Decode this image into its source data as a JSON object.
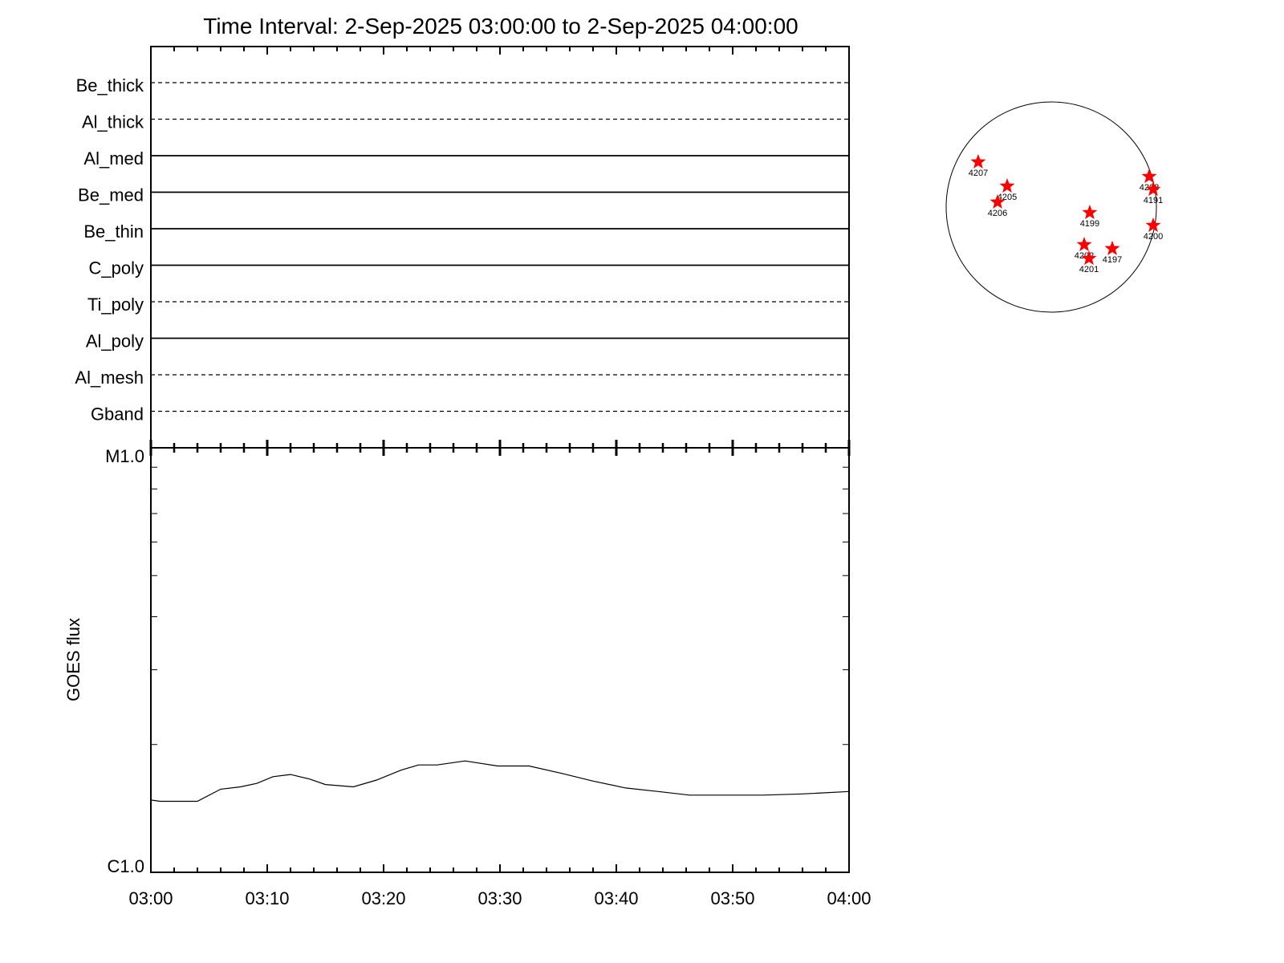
{
  "chart_data": [
    {
      "type": "table",
      "title": "Time Interval:  2-Sep-2025 03:00:00 to  2-Sep-2025 04:00:00",
      "filters": [
        {
          "name": "Be_thick",
          "style": "dashed"
        },
        {
          "name": "Al_thick",
          "style": "dashed"
        },
        {
          "name": "Al_med",
          "style": "solid"
        },
        {
          "name": "Be_med",
          "style": "solid"
        },
        {
          "name": "Be_thin",
          "style": "solid"
        },
        {
          "name": "C_poly",
          "style": "solid"
        },
        {
          "name": "Ti_poly",
          "style": "dashed"
        },
        {
          "name": "Al_poly",
          "style": "solid"
        },
        {
          "name": "Al_mesh",
          "style": "dashed"
        },
        {
          "name": "Gband",
          "style": "dashed"
        }
      ]
    },
    {
      "type": "line",
      "ylabel": "GOES flux",
      "xlabel": "",
      "yscale": "log",
      "ylim": [
        1e-06,
        1e-05
      ],
      "ytick_labels": [
        {
          "value": 1e-05,
          "label": "M1.0"
        },
        {
          "value": 1e-06,
          "label": "C1.0"
        }
      ],
      "xlim": [
        "03:00",
        "04:00"
      ],
      "xtick_labels": [
        "03:00",
        "03:10",
        "03:20",
        "03:30",
        "03:40",
        "03:50",
        "04:00"
      ],
      "grid": false,
      "series": [
        {
          "color": "#000000",
          "x": [
            0,
            0.8,
            4,
            6,
            7.7,
            9.1,
            10.5,
            12,
            13.6,
            15,
            17.4,
            19.4,
            21.5,
            23,
            24.6,
            27,
            29.8,
            32.5,
            35.3,
            38,
            40.8,
            43.6,
            46.3,
            49.1,
            52.6,
            56,
            60
          ],
          "x_unit": "minutes after 03:00",
          "values": [
            1.48e-06,
            1.47e-06,
            1.47e-06,
            1.57e-06,
            1.59e-06,
            1.62e-06,
            1.68e-06,
            1.7e-06,
            1.66e-06,
            1.61e-06,
            1.59e-06,
            1.65e-06,
            1.74e-06,
            1.79e-06,
            1.79e-06,
            1.83e-06,
            1.78e-06,
            1.78e-06,
            1.71e-06,
            1.64e-06,
            1.58e-06,
            1.55e-06,
            1.52e-06,
            1.52e-06,
            1.52e-06,
            1.53e-06,
            1.55e-06
          ]
        }
      ]
    },
    {
      "type": "scatter",
      "marker": "star",
      "marker_color": "#ff0000",
      "disk_radius_arcsec": 951,
      "regions": [
        {
          "label": "4207",
          "x": -661,
          "y": 407
        },
        {
          "label": "4205",
          "x": -399,
          "y": 189
        },
        {
          "label": "4206",
          "x": -486,
          "y": 44
        },
        {
          "label": "4199",
          "x": 348,
          "y": -51
        },
        {
          "label": "4202",
          "x": 298,
          "y": -341
        },
        {
          "label": "4201",
          "x": 341,
          "y": -465
        },
        {
          "label": "4197",
          "x": 552,
          "y": -377
        },
        {
          "label": "4208",
          "x": 886,
          "y": 276
        },
        {
          "label": "4191",
          "x": 922,
          "y": 160
        },
        {
          "label": "4200",
          "x": 922,
          "y": -167
        }
      ]
    }
  ]
}
